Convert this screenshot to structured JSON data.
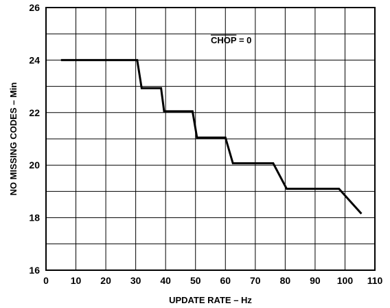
{
  "chart_data": {
    "type": "line",
    "title": "",
    "xlabel": "UPDATE RATE – Hz",
    "ylabel": "NO MISSING CODES – Min",
    "xlim": [
      0,
      110
    ],
    "ylim": [
      16,
      26
    ],
    "x_ticks": [
      0,
      10,
      20,
      30,
      40,
      50,
      60,
      70,
      80,
      90,
      100,
      110
    ],
    "y_ticks": [
      16,
      18,
      20,
      22,
      24,
      26
    ],
    "grid": true,
    "annotation": {
      "overlined": "CHOP",
      "rest": " = 0"
    },
    "series": [
      {
        "color": "#000000",
        "x": [
          5,
          30.5,
          32,
          38.5,
          39.5,
          49,
          50.5,
          60,
          62.5,
          76,
          80.5,
          98,
          105.5
        ],
        "y": [
          24,
          24,
          22.93,
          22.93,
          22.05,
          22.05,
          21.05,
          21.05,
          20.07,
          20.07,
          19.1,
          19.1,
          18.15
        ]
      }
    ]
  }
}
